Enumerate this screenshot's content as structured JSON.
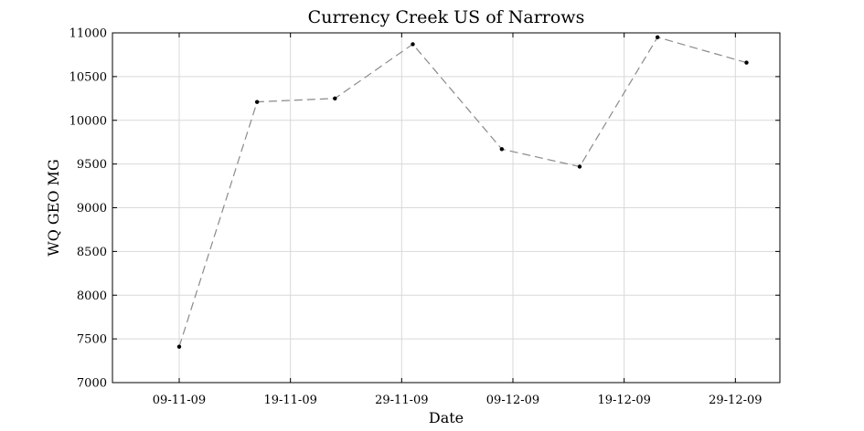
{
  "chart_data": {
    "type": "line",
    "title": "Currency Creek US of Narrows",
    "xlabel": "Date",
    "ylabel": "WQ GEO MG",
    "x_axis_type": "date",
    "x": [
      "2009-11-09",
      "2009-11-16",
      "2009-11-23",
      "2009-11-30",
      "2009-12-08",
      "2009-12-15",
      "2009-12-22",
      "2009-12-30"
    ],
    "x_tick_dates": [
      "2009-11-09",
      "2009-11-19",
      "2009-11-29",
      "2009-12-09",
      "2009-12-19",
      "2009-12-29"
    ],
    "x_tick_labels": [
      "09-11-09",
      "19-11-09",
      "29-11-09",
      "09-12-09",
      "19-12-09",
      "29-12-09"
    ],
    "xlim": [
      "2009-11-03",
      "2010-01-02"
    ],
    "ylim": [
      7000,
      11000
    ],
    "y_ticks": [
      7000,
      7500,
      8000,
      8500,
      9000,
      9500,
      10000,
      10500,
      11000
    ],
    "y_tick_labels": [
      "7000",
      "7500",
      "8000",
      "8500",
      "9000",
      "9500",
      "10000",
      "10500",
      "11000"
    ],
    "grid": true,
    "legend": "none",
    "series": [
      {
        "values": [
          7410,
          10210,
          10250,
          10870,
          9670,
          9470,
          10950,
          10660
        ],
        "line_color": "#8a8a8a",
        "line_style": "dashed",
        "marker_color": "#000000"
      }
    ]
  }
}
